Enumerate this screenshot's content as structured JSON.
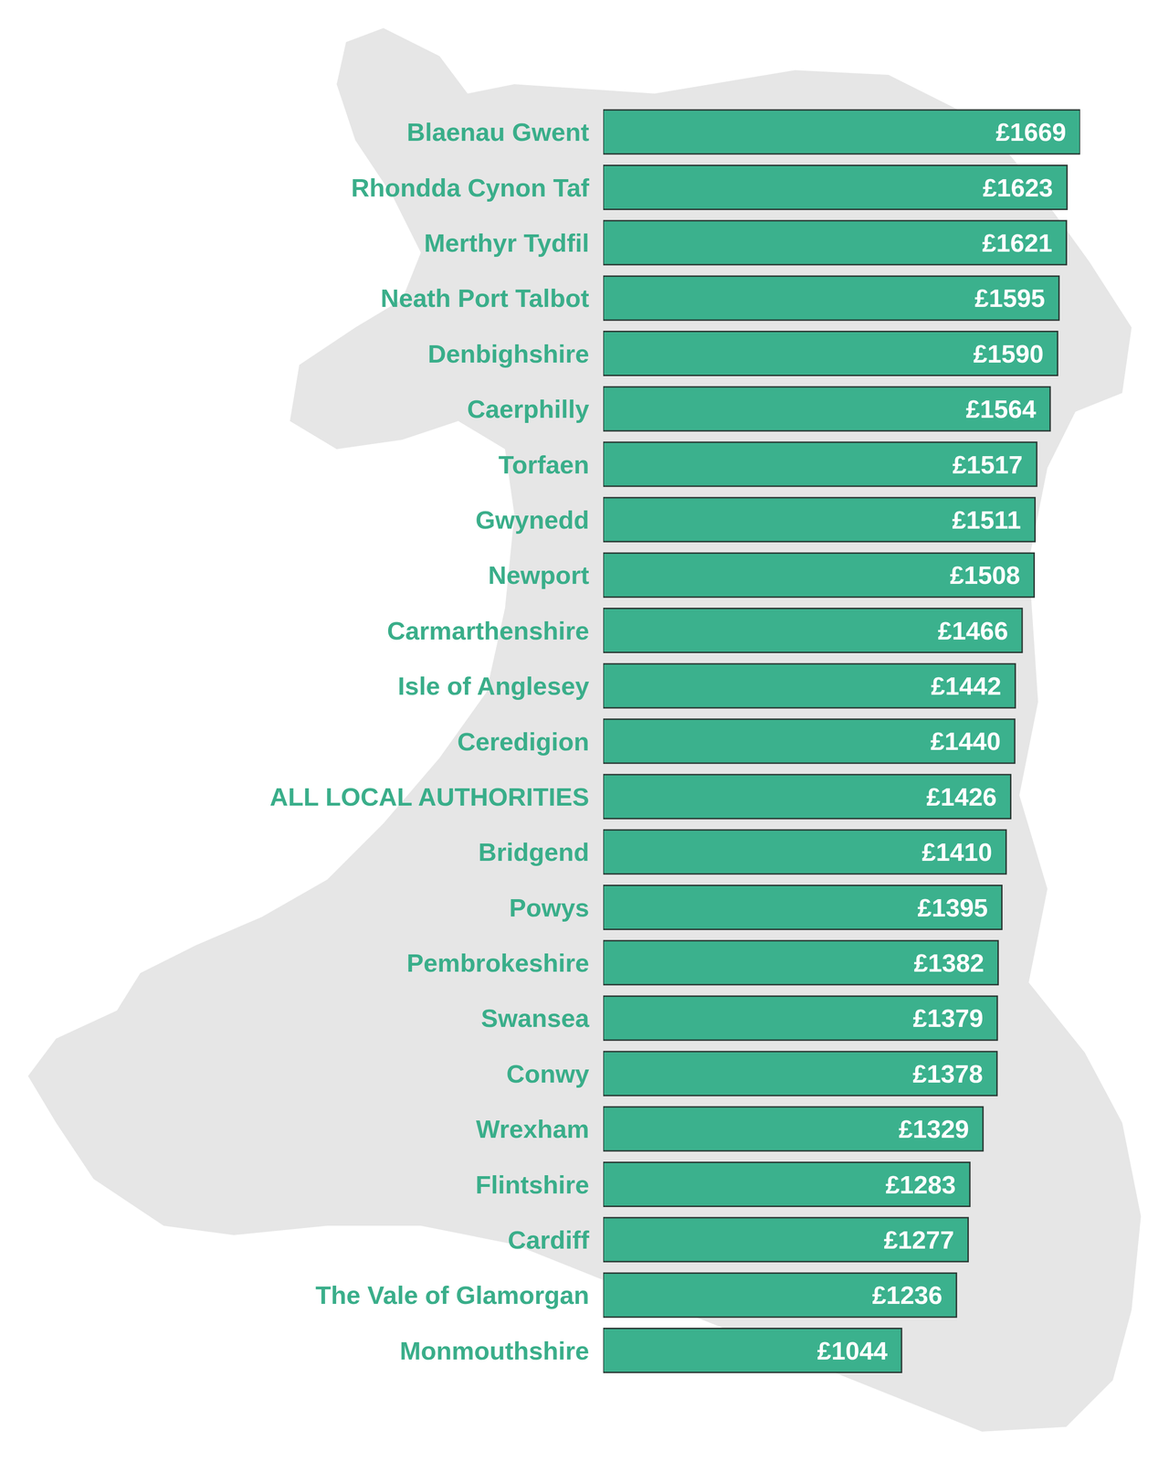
{
  "chart_data": {
    "type": "bar",
    "orientation": "horizontal",
    "categories": [
      "Blaenau Gwent",
      "Rhondda Cynon Taf",
      "Merthyr Tydfil",
      "Neath Port Talbot",
      "Denbighshire",
      "Caerphilly",
      "Torfaen",
      "Gwynedd",
      "Newport",
      "Carmarthenshire",
      "Isle of Anglesey",
      "Ceredigion",
      "ALL LOCAL AUTHORITIES",
      "Bridgend",
      "Powys",
      "Pembrokeshire",
      "Swansea",
      "Conwy",
      "Wrexham",
      "Flintshire",
      "Cardiff",
      "The Vale of Glamorgan",
      "Monmouthshire"
    ],
    "values": [
      1669,
      1623,
      1621,
      1595,
      1590,
      1564,
      1517,
      1511,
      1508,
      1466,
      1442,
      1440,
      1426,
      1410,
      1395,
      1382,
      1379,
      1378,
      1329,
      1283,
      1277,
      1236,
      1044
    ],
    "value_labels": [
      "£1669",
      "£1623",
      "£1621",
      "£1595",
      "£1590",
      "£1564",
      "£1517",
      "£1511",
      "£1508",
      "£1466",
      "£1442",
      "£1440",
      "£1426",
      "£1410",
      "£1395",
      "£1382",
      "£1379",
      "£1378",
      "£1329",
      "£1283",
      "£1277",
      "£1236",
      "£1044"
    ],
    "color": "#3bb18d",
    "xlim": [
      0,
      1669
    ],
    "data_labels": true,
    "tick_labels": "y",
    "grid": false
  }
}
